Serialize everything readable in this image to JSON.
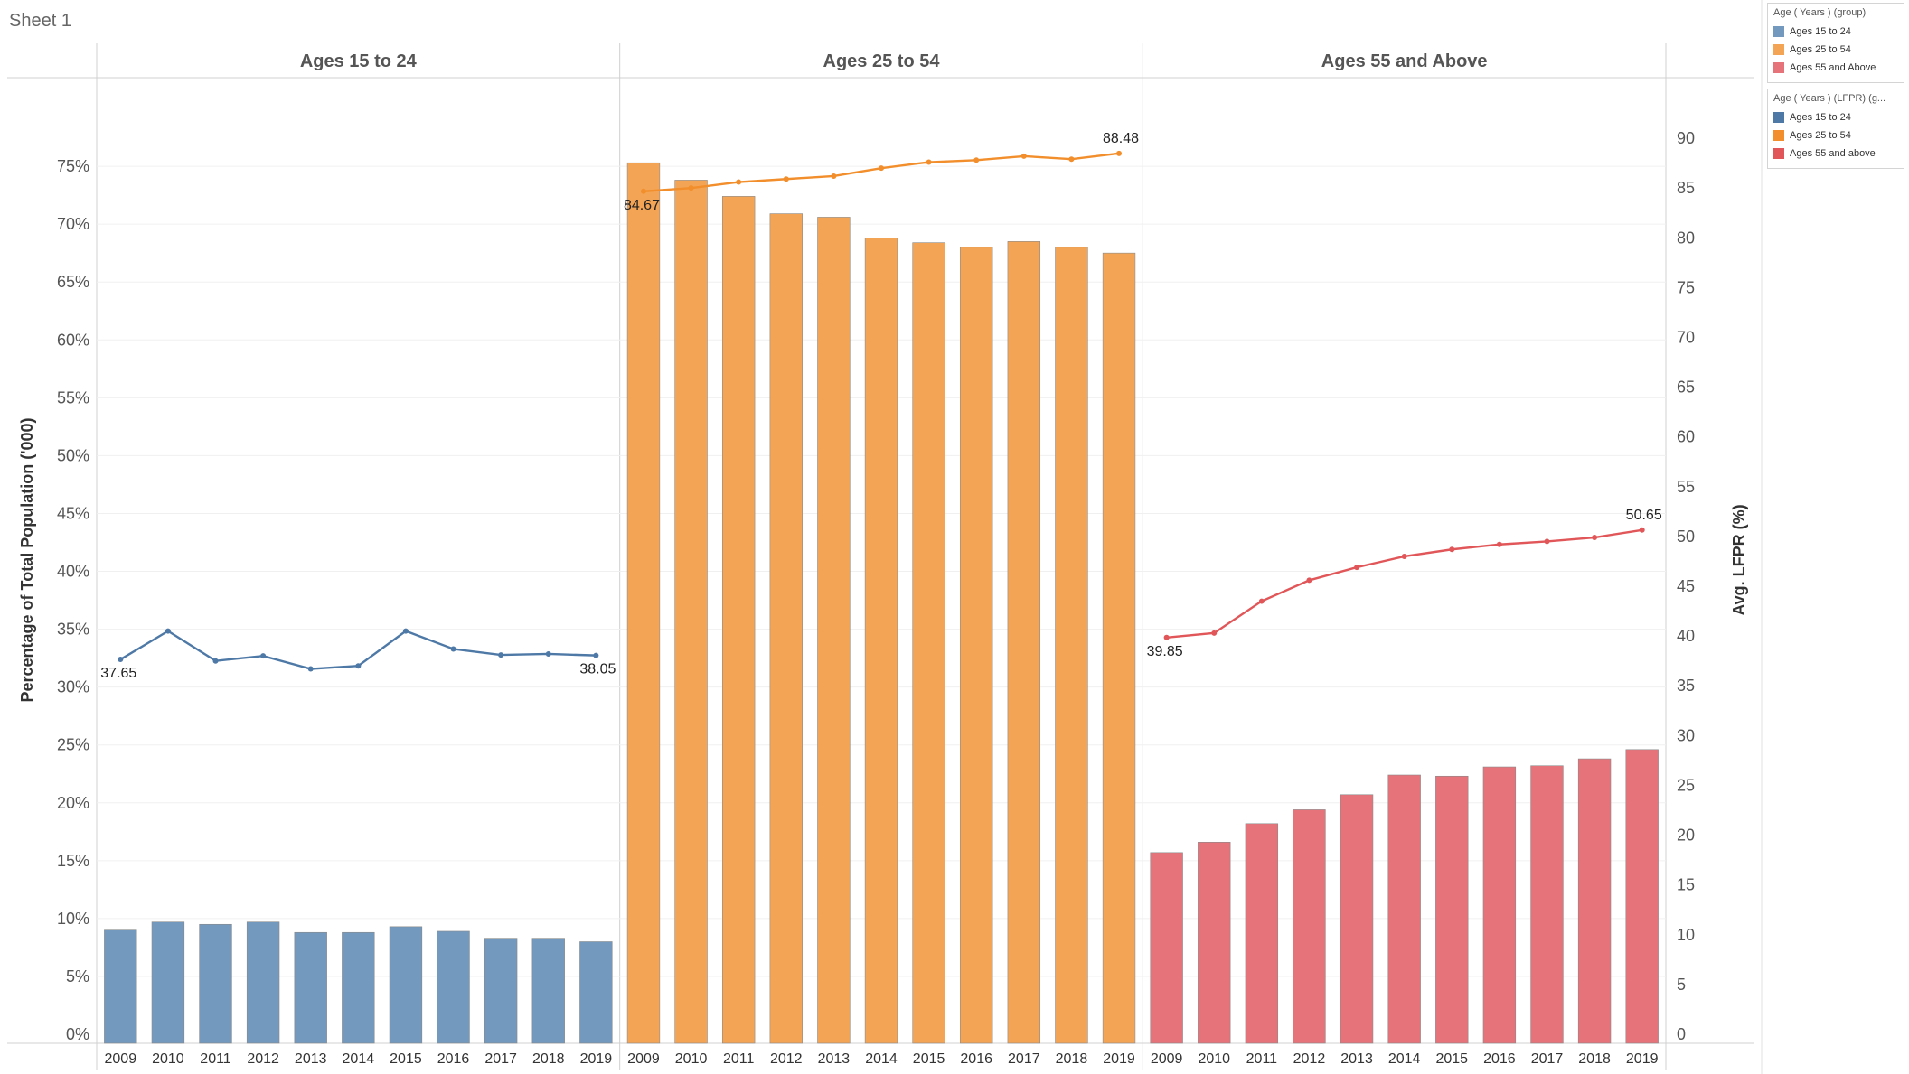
{
  "sheet": {
    "title": "Sheet 1"
  },
  "legends": [
    {
      "title": "Age ( Years ) (group)",
      "items": [
        {
          "label": "Ages 15 to 24",
          "color": "#7399be"
        },
        {
          "label": "Ages 25 to 54",
          "color": "#f3a454"
        },
        {
          "label": "Ages 55 and Above",
          "color": "#e6737a"
        }
      ]
    },
    {
      "title": "Age ( Years ) (LFPR) (g...",
      "items": [
        {
          "label": "Ages 15 to 24",
          "color": "#4e79a7"
        },
        {
          "label": "Ages 25 to 54",
          "color": "#f28e2b"
        },
        {
          "label": "Ages 55 and above",
          "color": "#e15759"
        }
      ]
    }
  ],
  "chart_data": {
    "type": "bar",
    "categories": [
      "2009",
      "2010",
      "2011",
      "2012",
      "2013",
      "2014",
      "2015",
      "2016",
      "2017",
      "2018",
      "2019"
    ],
    "ylabel": "Percentage of Total Population ('000)",
    "y2label": "Avg. LFPR (%)",
    "ylim": [
      0,
      80
    ],
    "yticks": [
      "0%",
      "5%",
      "10%",
      "15%",
      "20%",
      "25%",
      "30%",
      "35%",
      "40%",
      "45%",
      "50%",
      "55%",
      "60%",
      "65%",
      "70%",
      "75%"
    ],
    "y2lim": [
      0,
      93
    ],
    "y2ticks": [
      "0",
      "5",
      "10",
      "15",
      "20",
      "25",
      "30",
      "35",
      "40",
      "45",
      "50",
      "55",
      "60",
      "65",
      "70",
      "75",
      "80",
      "85",
      "90"
    ],
    "panels": [
      {
        "name": "Ages 15 to 24",
        "bar_color": "#7399be",
        "line_color": "#4e79a7",
        "bars": [
          9.0,
          9.7,
          9.5,
          9.7,
          8.8,
          8.8,
          9.3,
          8.9,
          8.3,
          8.3,
          8.0
        ],
        "line": [
          37.65,
          40.5,
          37.5,
          38.0,
          36.7,
          37.0,
          40.5,
          38.7,
          38.1,
          38.2,
          38.05
        ],
        "labels": {
          "first": "37.65",
          "last": "38.05"
        }
      },
      {
        "name": "Ages 25 to 54",
        "bar_color": "#f3a454",
        "line_color": "#f28e2b",
        "bars": [
          75.3,
          73.8,
          72.4,
          70.9,
          70.6,
          68.8,
          68.4,
          68.0,
          68.5,
          68.0,
          67.5
        ],
        "line": [
          84.67,
          85.0,
          85.6,
          85.9,
          86.2,
          87.0,
          87.6,
          87.8,
          88.2,
          87.9,
          88.48
        ],
        "labels": {
          "first": "84.67",
          "last": "88.48"
        }
      },
      {
        "name": "Ages 55 and Above",
        "bar_color": "#e6737a",
        "line_color": "#e15759",
        "bars": [
          15.7,
          16.6,
          18.2,
          19.4,
          20.7,
          22.4,
          22.3,
          23.1,
          23.2,
          23.8,
          24.6
        ],
        "line": [
          39.85,
          40.3,
          43.5,
          45.6,
          46.9,
          48.0,
          48.7,
          49.2,
          49.5,
          49.9,
          50.65
        ],
        "labels": {
          "first": "39.85",
          "last": "50.65"
        }
      }
    ]
  }
}
